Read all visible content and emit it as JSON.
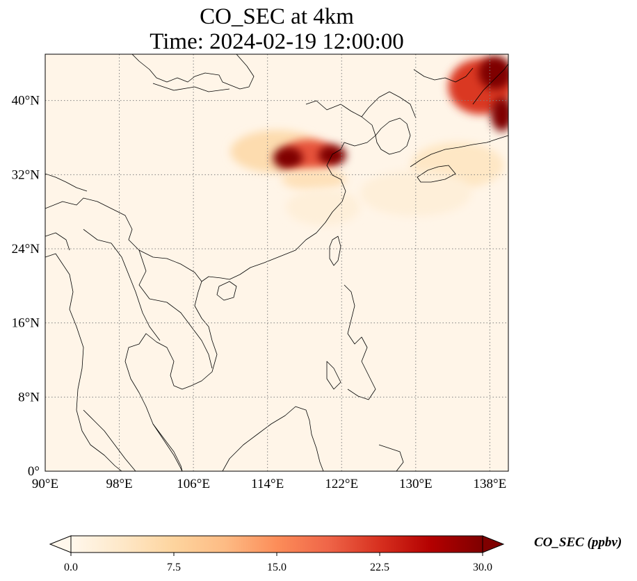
{
  "title": {
    "line1": "CO_SEC at 4km",
    "line2": "Time: 2024-02-19 12:00:00"
  },
  "map": {
    "projection": "PlateCarree",
    "lon_range": [
      90,
      140
    ],
    "lat_range": [
      0,
      45
    ],
    "gridlines": "dotted",
    "lon_ticks": [
      {
        "value": 90,
        "label": "90°E"
      },
      {
        "value": 98,
        "label": "98°E"
      },
      {
        "value": 106,
        "label": "106°E"
      },
      {
        "value": 114,
        "label": "114°E"
      },
      {
        "value": 122,
        "label": "122°E"
      },
      {
        "value": 130,
        "label": "130°E"
      },
      {
        "value": 138,
        "label": "138°E"
      }
    ],
    "lat_ticks": [
      {
        "value": 0,
        "label": "0°"
      },
      {
        "value": 8,
        "label": "8°N"
      },
      {
        "value": 16,
        "label": "16°N"
      },
      {
        "value": 24,
        "label": "24°N"
      },
      {
        "value": 32,
        "label": "32°N"
      },
      {
        "value": 40,
        "label": "40°N"
      }
    ],
    "plumes": [
      {
        "lon": 115.0,
        "lat": 34.5,
        "rlon": 5.0,
        "rlat": 2.3,
        "value": 6
      },
      {
        "lon": 118.5,
        "lat": 34.0,
        "rlon": 3.0,
        "rlat": 1.8,
        "value": 20
      },
      {
        "lon": 116.2,
        "lat": 33.8,
        "rlon": 1.6,
        "rlat": 1.2,
        "value": 30
      },
      {
        "lon": 121.0,
        "lat": 34.1,
        "rlon": 1.5,
        "rlat": 1.1,
        "value": 30
      },
      {
        "lon": 119.0,
        "lat": 31.5,
        "rlon": 3.5,
        "rlat": 1.2,
        "value": 5
      },
      {
        "lon": 120.0,
        "lat": 28.5,
        "rlon": 4.0,
        "rlat": 2.0,
        "value": 2
      },
      {
        "lon": 137.0,
        "lat": 41.5,
        "rlon": 3.5,
        "rlat": 3.0,
        "value": 22
      },
      {
        "lon": 138.6,
        "lat": 43.0,
        "rlon": 1.8,
        "rlat": 1.8,
        "value": 30
      },
      {
        "lon": 139.3,
        "lat": 38.5,
        "rlon": 1.2,
        "rlat": 1.8,
        "value": 30
      },
      {
        "lon": 134.5,
        "lat": 33.0,
        "rlon": 5.0,
        "rlat": 2.5,
        "value": 4
      },
      {
        "lon": 130.0,
        "lat": 30.0,
        "rlon": 6.0,
        "rlat": 2.5,
        "value": 2
      }
    ]
  },
  "colorbar": {
    "label": "CO_SEC (ppbv)",
    "vmin": 0,
    "vmax": 30,
    "extend": "both",
    "cmap": "OrRd",
    "stops": [
      "#fff7ec",
      "#fee8c8",
      "#fdd49e",
      "#fdbb84",
      "#fc8d59",
      "#ef6548",
      "#d7301f",
      "#b30000",
      "#7f0000"
    ],
    "ticks": [
      {
        "value": 0,
        "label": "0.0"
      },
      {
        "value": 7.5,
        "label": "7.5"
      },
      {
        "value": 15,
        "label": "15.0"
      },
      {
        "value": 22.5,
        "label": "22.5"
      },
      {
        "value": 30,
        "label": "30.0"
      }
    ]
  }
}
